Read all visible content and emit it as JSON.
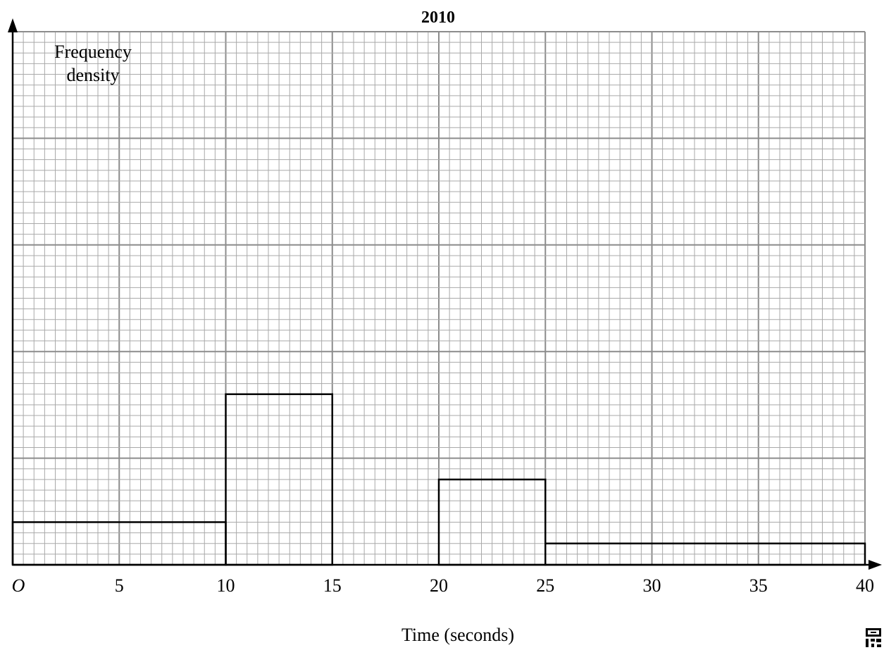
{
  "chart_data": {
    "type": "histogram",
    "title": "2010",
    "ylabel_lines": [
      "Frequency",
      "density"
    ],
    "xlabel": "Time (seconds)",
    "origin_label": "O",
    "xlim": [
      0,
      40
    ],
    "ylim": [
      0,
      10
    ],
    "grid": true,
    "x_ticks": [
      5,
      10,
      15,
      20,
      25,
      30,
      35,
      40
    ],
    "x_tick_labels": [
      "5",
      "10",
      "15",
      "20",
      "25",
      "30",
      "35",
      "40"
    ],
    "bars": [
      {
        "x_start": 0,
        "x_end": 10,
        "height": 0.8
      },
      {
        "x_start": 10,
        "x_end": 15,
        "height": 3.2
      },
      {
        "x_start": 20,
        "x_end": 25,
        "height": 1.6
      },
      {
        "x_start": 25,
        "x_end": 40,
        "height": 0.4
      }
    ]
  }
}
